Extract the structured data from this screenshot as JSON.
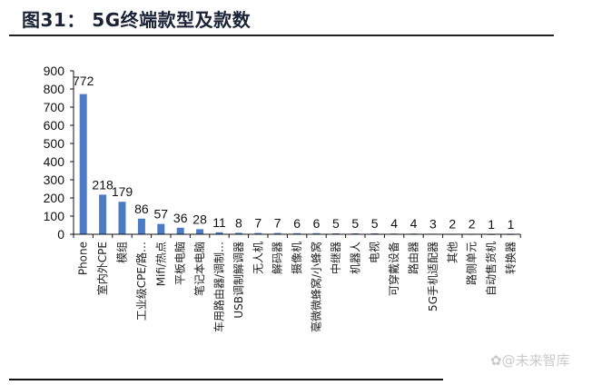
{
  "header": {
    "title": "图31：  5G终端款型及款数"
  },
  "watermark": "✿@未来智库",
  "colors": {
    "bar": "#4a7bc4",
    "axis": "#111111",
    "title": "#1a2236"
  },
  "chart_data": {
    "type": "bar",
    "title": "图31：5G终端款型及款数",
    "xlabel": "",
    "ylabel": "",
    "ylim": [
      0,
      900
    ],
    "yticks": [
      0,
      100,
      200,
      300,
      400,
      500,
      600,
      700,
      800,
      900
    ],
    "grid": false,
    "legend": null,
    "data_labels": true,
    "categories": [
      "Phone",
      "室内外CPE",
      "模组",
      "工业级CPE/路…",
      "Mifi/热点",
      "平板电脑",
      "笔记本电脑",
      "车用路由器/调制…",
      "USB调制解调器",
      "无人机",
      "解码器",
      "摄像机",
      "毫微微蜂窝/小蜂窝",
      "中继器",
      "机器人",
      "电视",
      "可穿戴设备",
      "路由器",
      "5G手机适配器",
      "其他",
      "路侧单元",
      "自动售货机",
      "转换器"
    ],
    "values": [
      772,
      218,
      179,
      86,
      57,
      36,
      28,
      11,
      8,
      7,
      7,
      6,
      6,
      5,
      5,
      5,
      4,
      4,
      3,
      2,
      2,
      1,
      1
    ]
  }
}
